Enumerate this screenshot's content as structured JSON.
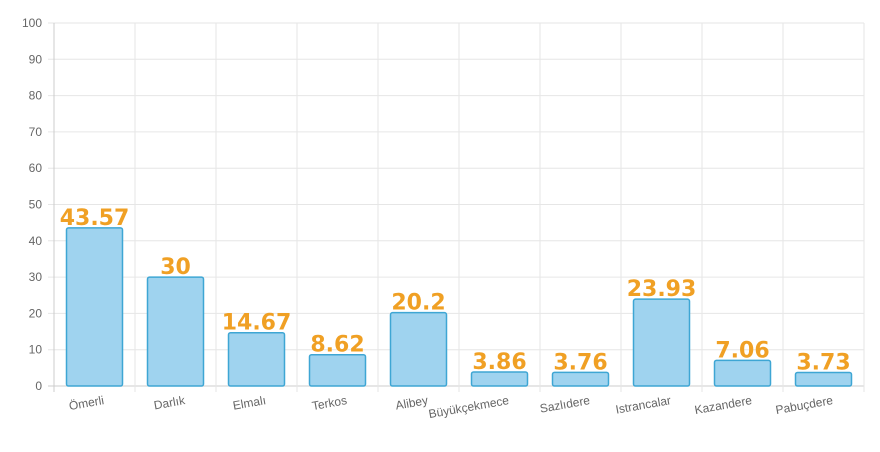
{
  "chart_data": {
    "type": "bar",
    "categories": [
      "Ömerli",
      "Darlık",
      "Elmalı",
      "Terkos",
      "Alibey",
      "Büyükçekmece",
      "Sazlıdere",
      "Istrancalar",
      "Kazandere",
      "Pabuçdere"
    ],
    "values": [
      43.57,
      30,
      14.67,
      8.62,
      20.2,
      3.86,
      3.76,
      23.93,
      7.06,
      3.73
    ],
    "data_labels": [
      "43.57",
      "30",
      "14.67",
      "8.62",
      "20.2",
      "3.86",
      "3.76",
      "23.93",
      "7.06",
      "3.73"
    ],
    "title": "",
    "xlabel": "",
    "ylabel": "",
    "ylim": [
      0,
      100
    ],
    "yticks": [
      "0",
      "10",
      "20",
      "30",
      "40",
      "50",
      "60",
      "70",
      "80",
      "90",
      "100"
    ],
    "grid": true,
    "legend": "none",
    "colors": {
      "bar_fill": "#9fd3ef",
      "bar_stroke": "#3ea6d4",
      "data_label": "#f0a024",
      "grid": "#e6e6e6",
      "axis": "#cccccc",
      "tick_text": "#666666"
    }
  }
}
